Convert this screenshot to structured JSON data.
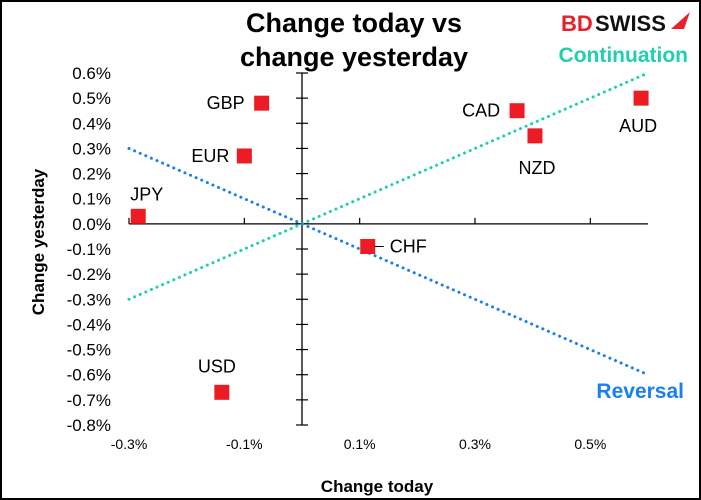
{
  "chart_data": {
    "type": "scatter",
    "title_lines": [
      "Change today vs",
      "change yesterday"
    ],
    "xlabel": "Change today",
    "ylabel": "Change yesterday",
    "xlim": [
      -0.3,
      0.6
    ],
    "ylim": [
      -0.8,
      0.6
    ],
    "x_ticks": [
      -0.3,
      -0.1,
      0.1,
      0.3,
      0.5
    ],
    "x_tick_labels": [
      "-0.3%",
      "-0.1%",
      "0.1%",
      "0.3%",
      "0.5%"
    ],
    "y_ticks": [
      0.6,
      0.5,
      0.4,
      0.3,
      0.2,
      0.1,
      0.0,
      -0.1,
      -0.2,
      -0.3,
      -0.4,
      -0.5,
      -0.6,
      -0.7,
      -0.8
    ],
    "y_tick_labels": [
      "0.6%",
      "0.5%",
      "0.4%",
      "0.3%",
      "0.2%",
      "0.1%",
      "0.0%",
      "-0.1%",
      "-0.2%",
      "-0.3%",
      "-0.4%",
      "-0.5%",
      "-0.6%",
      "-0.7%",
      "-0.8%"
    ],
    "grid": false,
    "marker_color": "#ed1c24",
    "points": [
      {
        "label": "GBP",
        "x": -0.07,
        "y": 0.48
      },
      {
        "label": "EUR",
        "x": -0.1,
        "y": 0.27
      },
      {
        "label": "JPY",
        "x": -0.284,
        "y": 0.03
      },
      {
        "label": "CHF",
        "x": 0.114,
        "y": -0.09
      },
      {
        "label": "USD",
        "x": -0.139,
        "y": -0.67
      },
      {
        "label": "CAD",
        "x": 0.373,
        "y": 0.45
      },
      {
        "label": "NZD",
        "x": 0.404,
        "y": 0.35
      },
      {
        "label": "AUD",
        "x": 0.588,
        "y": 0.5
      }
    ],
    "reference_lines": [
      {
        "label": "Continuation",
        "color": "#1fcfb0",
        "from": [
          -0.3,
          -0.3
        ],
        "to": [
          0.6,
          0.6
        ]
      },
      {
        "label": "Reversal",
        "color": "#1a7ff0",
        "from": [
          -0.3,
          0.3
        ],
        "to": [
          0.6,
          -0.6
        ]
      }
    ]
  },
  "logo": {
    "text_bd": "BD",
    "text_swiss": "SWISS",
    "color_red": "#e8202a"
  }
}
